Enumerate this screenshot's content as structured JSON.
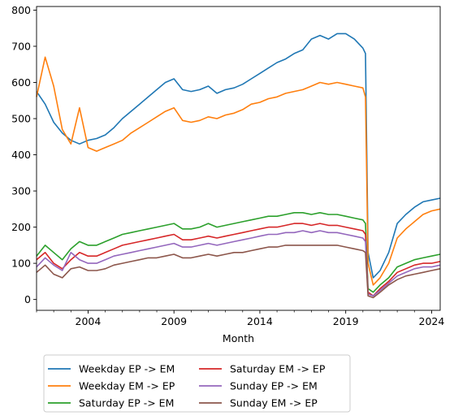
{
  "chart_data": {
    "type": "line",
    "title": "",
    "xlabel": "Month",
    "ylabel": "",
    "xlim": [
      2001.0,
      2024.5
    ],
    "ylim": [
      -30,
      810
    ],
    "x_ticks": [
      2004,
      2009,
      2014,
      2019,
      2024
    ],
    "x_tick_labels": [
      "2004",
      "2009",
      "2014",
      "2019",
      "2024"
    ],
    "y_ticks": [
      0,
      100,
      200,
      300,
      400,
      500,
      600,
      700,
      800
    ],
    "y_tick_labels": [
      "0",
      "100",
      "200",
      "300",
      "400",
      "500",
      "600",
      "700",
      "800"
    ],
    "grid": false,
    "legend_position": "below",
    "series": [
      {
        "name": "Weekday EP -> EM",
        "color": "#1f77b4",
        "points": [
          [
            2001.0,
            575
          ],
          [
            2001.5,
            540
          ],
          [
            2002.0,
            490
          ],
          [
            2002.5,
            460
          ],
          [
            2003.0,
            440
          ],
          [
            2003.5,
            430
          ],
          [
            2004.0,
            440
          ],
          [
            2004.5,
            445
          ],
          [
            2005.0,
            455
          ],
          [
            2005.5,
            475
          ],
          [
            2006.0,
            500
          ],
          [
            2006.5,
            520
          ],
          [
            2007.0,
            540
          ],
          [
            2007.5,
            560
          ],
          [
            2008.0,
            580
          ],
          [
            2008.5,
            600
          ],
          [
            2009.0,
            610
          ],
          [
            2009.5,
            580
          ],
          [
            2010.0,
            575
          ],
          [
            2010.5,
            580
          ],
          [
            2011.0,
            590
          ],
          [
            2011.5,
            570
          ],
          [
            2012.0,
            580
          ],
          [
            2012.5,
            585
          ],
          [
            2013.0,
            595
          ],
          [
            2013.5,
            610
          ],
          [
            2014.0,
            625
          ],
          [
            2014.5,
            640
          ],
          [
            2015.0,
            655
          ],
          [
            2015.5,
            665
          ],
          [
            2016.0,
            680
          ],
          [
            2016.5,
            690
          ],
          [
            2017.0,
            720
          ],
          [
            2017.5,
            730
          ],
          [
            2018.0,
            720
          ],
          [
            2018.5,
            735
          ],
          [
            2019.0,
            735
          ],
          [
            2019.5,
            720
          ],
          [
            2020.0,
            695
          ],
          [
            2020.15,
            680
          ],
          [
            2020.3,
            130
          ],
          [
            2020.6,
            60
          ],
          [
            2021.0,
            80
          ],
          [
            2021.5,
            130
          ],
          [
            2022.0,
            210
          ],
          [
            2022.5,
            235
          ],
          [
            2023.0,
            255
          ],
          [
            2023.5,
            270
          ],
          [
            2024.0,
            275
          ],
          [
            2024.5,
            280
          ]
        ]
      },
      {
        "name": "Weekday EM -> EP",
        "color": "#ff7f0e",
        "points": [
          [
            2001.0,
            560
          ],
          [
            2001.5,
            670
          ],
          [
            2002.0,
            590
          ],
          [
            2002.5,
            470
          ],
          [
            2003.0,
            430
          ],
          [
            2003.5,
            530
          ],
          [
            2004.0,
            420
          ],
          [
            2004.5,
            410
          ],
          [
            2005.0,
            420
          ],
          [
            2005.5,
            430
          ],
          [
            2006.0,
            440
          ],
          [
            2006.5,
            460
          ],
          [
            2007.0,
            475
          ],
          [
            2007.5,
            490
          ],
          [
            2008.0,
            505
          ],
          [
            2008.5,
            520
          ],
          [
            2009.0,
            530
          ],
          [
            2009.5,
            495
          ],
          [
            2010.0,
            490
          ],
          [
            2010.5,
            495
          ],
          [
            2011.0,
            505
          ],
          [
            2011.5,
            500
          ],
          [
            2012.0,
            510
          ],
          [
            2012.5,
            515
          ],
          [
            2013.0,
            525
          ],
          [
            2013.5,
            540
          ],
          [
            2014.0,
            545
          ],
          [
            2014.5,
            555
          ],
          [
            2015.0,
            560
          ],
          [
            2015.5,
            570
          ],
          [
            2016.0,
            575
          ],
          [
            2016.5,
            580
          ],
          [
            2017.0,
            590
          ],
          [
            2017.5,
            600
          ],
          [
            2018.0,
            595
          ],
          [
            2018.5,
            600
          ],
          [
            2019.0,
            595
          ],
          [
            2019.5,
            590
          ],
          [
            2020.0,
            585
          ],
          [
            2020.15,
            560
          ],
          [
            2020.3,
            100
          ],
          [
            2020.6,
            40
          ],
          [
            2021.0,
            60
          ],
          [
            2021.5,
            100
          ],
          [
            2022.0,
            170
          ],
          [
            2022.5,
            195
          ],
          [
            2023.0,
            215
          ],
          [
            2023.5,
            235
          ],
          [
            2024.0,
            245
          ],
          [
            2024.5,
            250
          ]
        ]
      },
      {
        "name": "Saturday EP -> EM",
        "color": "#2ca02c",
        "points": [
          [
            2001.0,
            120
          ],
          [
            2001.5,
            150
          ],
          [
            2002.0,
            130
          ],
          [
            2002.5,
            110
          ],
          [
            2003.0,
            140
          ],
          [
            2003.5,
            160
          ],
          [
            2004.0,
            150
          ],
          [
            2004.5,
            150
          ],
          [
            2005.0,
            160
          ],
          [
            2005.5,
            170
          ],
          [
            2006.0,
            180
          ],
          [
            2006.5,
            185
          ],
          [
            2007.0,
            190
          ],
          [
            2007.5,
            195
          ],
          [
            2008.0,
            200
          ],
          [
            2008.5,
            205
          ],
          [
            2009.0,
            210
          ],
          [
            2009.5,
            195
          ],
          [
            2010.0,
            195
          ],
          [
            2010.5,
            200
          ],
          [
            2011.0,
            210
          ],
          [
            2011.5,
            200
          ],
          [
            2012.0,
            205
          ],
          [
            2012.5,
            210
          ],
          [
            2013.0,
            215
          ],
          [
            2013.5,
            220
          ],
          [
            2014.0,
            225
          ],
          [
            2014.5,
            230
          ],
          [
            2015.0,
            230
          ],
          [
            2015.5,
            235
          ],
          [
            2016.0,
            240
          ],
          [
            2016.5,
            240
          ],
          [
            2017.0,
            235
          ],
          [
            2017.5,
            240
          ],
          [
            2018.0,
            235
          ],
          [
            2018.5,
            235
          ],
          [
            2019.0,
            230
          ],
          [
            2019.5,
            225
          ],
          [
            2020.0,
            220
          ],
          [
            2020.15,
            210
          ],
          [
            2020.3,
            30
          ],
          [
            2020.6,
            20
          ],
          [
            2021.0,
            40
          ],
          [
            2021.5,
            60
          ],
          [
            2022.0,
            90
          ],
          [
            2022.5,
            100
          ],
          [
            2023.0,
            110
          ],
          [
            2023.5,
            115
          ],
          [
            2024.0,
            120
          ],
          [
            2024.5,
            125
          ]
        ]
      },
      {
        "name": "Saturday EM -> EP",
        "color": "#d62728",
        "points": [
          [
            2001.0,
            110
          ],
          [
            2001.5,
            130
          ],
          [
            2002.0,
            100
          ],
          [
            2002.5,
            85
          ],
          [
            2003.0,
            110
          ],
          [
            2003.5,
            130
          ],
          [
            2004.0,
            120
          ],
          [
            2004.5,
            120
          ],
          [
            2005.0,
            130
          ],
          [
            2005.5,
            140
          ],
          [
            2006.0,
            150
          ],
          [
            2006.5,
            155
          ],
          [
            2007.0,
            160
          ],
          [
            2007.5,
            165
          ],
          [
            2008.0,
            170
          ],
          [
            2008.5,
            175
          ],
          [
            2009.0,
            180
          ],
          [
            2009.5,
            165
          ],
          [
            2010.0,
            165
          ],
          [
            2010.5,
            170
          ],
          [
            2011.0,
            175
          ],
          [
            2011.5,
            170
          ],
          [
            2012.0,
            175
          ],
          [
            2012.5,
            180
          ],
          [
            2013.0,
            185
          ],
          [
            2013.5,
            190
          ],
          [
            2014.0,
            195
          ],
          [
            2014.5,
            200
          ],
          [
            2015.0,
            200
          ],
          [
            2015.5,
            205
          ],
          [
            2016.0,
            210
          ],
          [
            2016.5,
            210
          ],
          [
            2017.0,
            205
          ],
          [
            2017.5,
            210
          ],
          [
            2018.0,
            205
          ],
          [
            2018.5,
            205
          ],
          [
            2019.0,
            200
          ],
          [
            2019.5,
            195
          ],
          [
            2020.0,
            190
          ],
          [
            2020.15,
            180
          ],
          [
            2020.3,
            20
          ],
          [
            2020.6,
            10
          ],
          [
            2021.0,
            30
          ],
          [
            2021.5,
            50
          ],
          [
            2022.0,
            75
          ],
          [
            2022.5,
            85
          ],
          [
            2023.0,
            95
          ],
          [
            2023.5,
            100
          ],
          [
            2024.0,
            100
          ],
          [
            2024.5,
            105
          ]
        ]
      },
      {
        "name": "Sunday EP -> EM",
        "color": "#9467bd",
        "points": [
          [
            2001.0,
            90
          ],
          [
            2001.5,
            115
          ],
          [
            2002.0,
            95
          ],
          [
            2002.5,
            80
          ],
          [
            2003.0,
            130
          ],
          [
            2003.5,
            110
          ],
          [
            2004.0,
            100
          ],
          [
            2004.5,
            100
          ],
          [
            2005.0,
            110
          ],
          [
            2005.5,
            120
          ],
          [
            2006.0,
            125
          ],
          [
            2006.5,
            130
          ],
          [
            2007.0,
            135
          ],
          [
            2007.5,
            140
          ],
          [
            2008.0,
            145
          ],
          [
            2008.5,
            150
          ],
          [
            2009.0,
            155
          ],
          [
            2009.5,
            145
          ],
          [
            2010.0,
            145
          ],
          [
            2010.5,
            150
          ],
          [
            2011.0,
            155
          ],
          [
            2011.5,
            150
          ],
          [
            2012.0,
            155
          ],
          [
            2012.5,
            160
          ],
          [
            2013.0,
            165
          ],
          [
            2013.5,
            170
          ],
          [
            2014.0,
            175
          ],
          [
            2014.5,
            180
          ],
          [
            2015.0,
            180
          ],
          [
            2015.5,
            185
          ],
          [
            2016.0,
            185
          ],
          [
            2016.5,
            190
          ],
          [
            2017.0,
            185
          ],
          [
            2017.5,
            190
          ],
          [
            2018.0,
            185
          ],
          [
            2018.5,
            185
          ],
          [
            2019.0,
            180
          ],
          [
            2019.5,
            175
          ],
          [
            2020.0,
            170
          ],
          [
            2020.15,
            160
          ],
          [
            2020.3,
            15
          ],
          [
            2020.6,
            10
          ],
          [
            2021.0,
            25
          ],
          [
            2021.5,
            45
          ],
          [
            2022.0,
            65
          ],
          [
            2022.5,
            75
          ],
          [
            2023.0,
            85
          ],
          [
            2023.5,
            90
          ],
          [
            2024.0,
            90
          ],
          [
            2024.5,
            95
          ]
        ]
      },
      {
        "name": "Sunday EM -> EP",
        "color": "#8c564b",
        "points": [
          [
            2001.0,
            75
          ],
          [
            2001.5,
            95
          ],
          [
            2002.0,
            70
          ],
          [
            2002.5,
            60
          ],
          [
            2003.0,
            85
          ],
          [
            2003.5,
            90
          ],
          [
            2004.0,
            80
          ],
          [
            2004.5,
            80
          ],
          [
            2005.0,
            85
          ],
          [
            2005.5,
            95
          ],
          [
            2006.0,
            100
          ],
          [
            2006.5,
            105
          ],
          [
            2007.0,
            110
          ],
          [
            2007.5,
            115
          ],
          [
            2008.0,
            115
          ],
          [
            2008.5,
            120
          ],
          [
            2009.0,
            125
          ],
          [
            2009.5,
            115
          ],
          [
            2010.0,
            115
          ],
          [
            2010.5,
            120
          ],
          [
            2011.0,
            125
          ],
          [
            2011.5,
            120
          ],
          [
            2012.0,
            125
          ],
          [
            2012.5,
            130
          ],
          [
            2013.0,
            130
          ],
          [
            2013.5,
            135
          ],
          [
            2014.0,
            140
          ],
          [
            2014.5,
            145
          ],
          [
            2015.0,
            145
          ],
          [
            2015.5,
            150
          ],
          [
            2016.0,
            150
          ],
          [
            2016.5,
            150
          ],
          [
            2017.0,
            150
          ],
          [
            2017.5,
            150
          ],
          [
            2018.0,
            150
          ],
          [
            2018.5,
            150
          ],
          [
            2019.0,
            145
          ],
          [
            2019.5,
            140
          ],
          [
            2020.0,
            135
          ],
          [
            2020.15,
            130
          ],
          [
            2020.3,
            10
          ],
          [
            2020.6,
            5
          ],
          [
            2021.0,
            20
          ],
          [
            2021.5,
            40
          ],
          [
            2022.0,
            55
          ],
          [
            2022.5,
            65
          ],
          [
            2023.0,
            70
          ],
          [
            2023.5,
            75
          ],
          [
            2024.0,
            80
          ],
          [
            2024.5,
            85
          ]
        ]
      }
    ]
  }
}
